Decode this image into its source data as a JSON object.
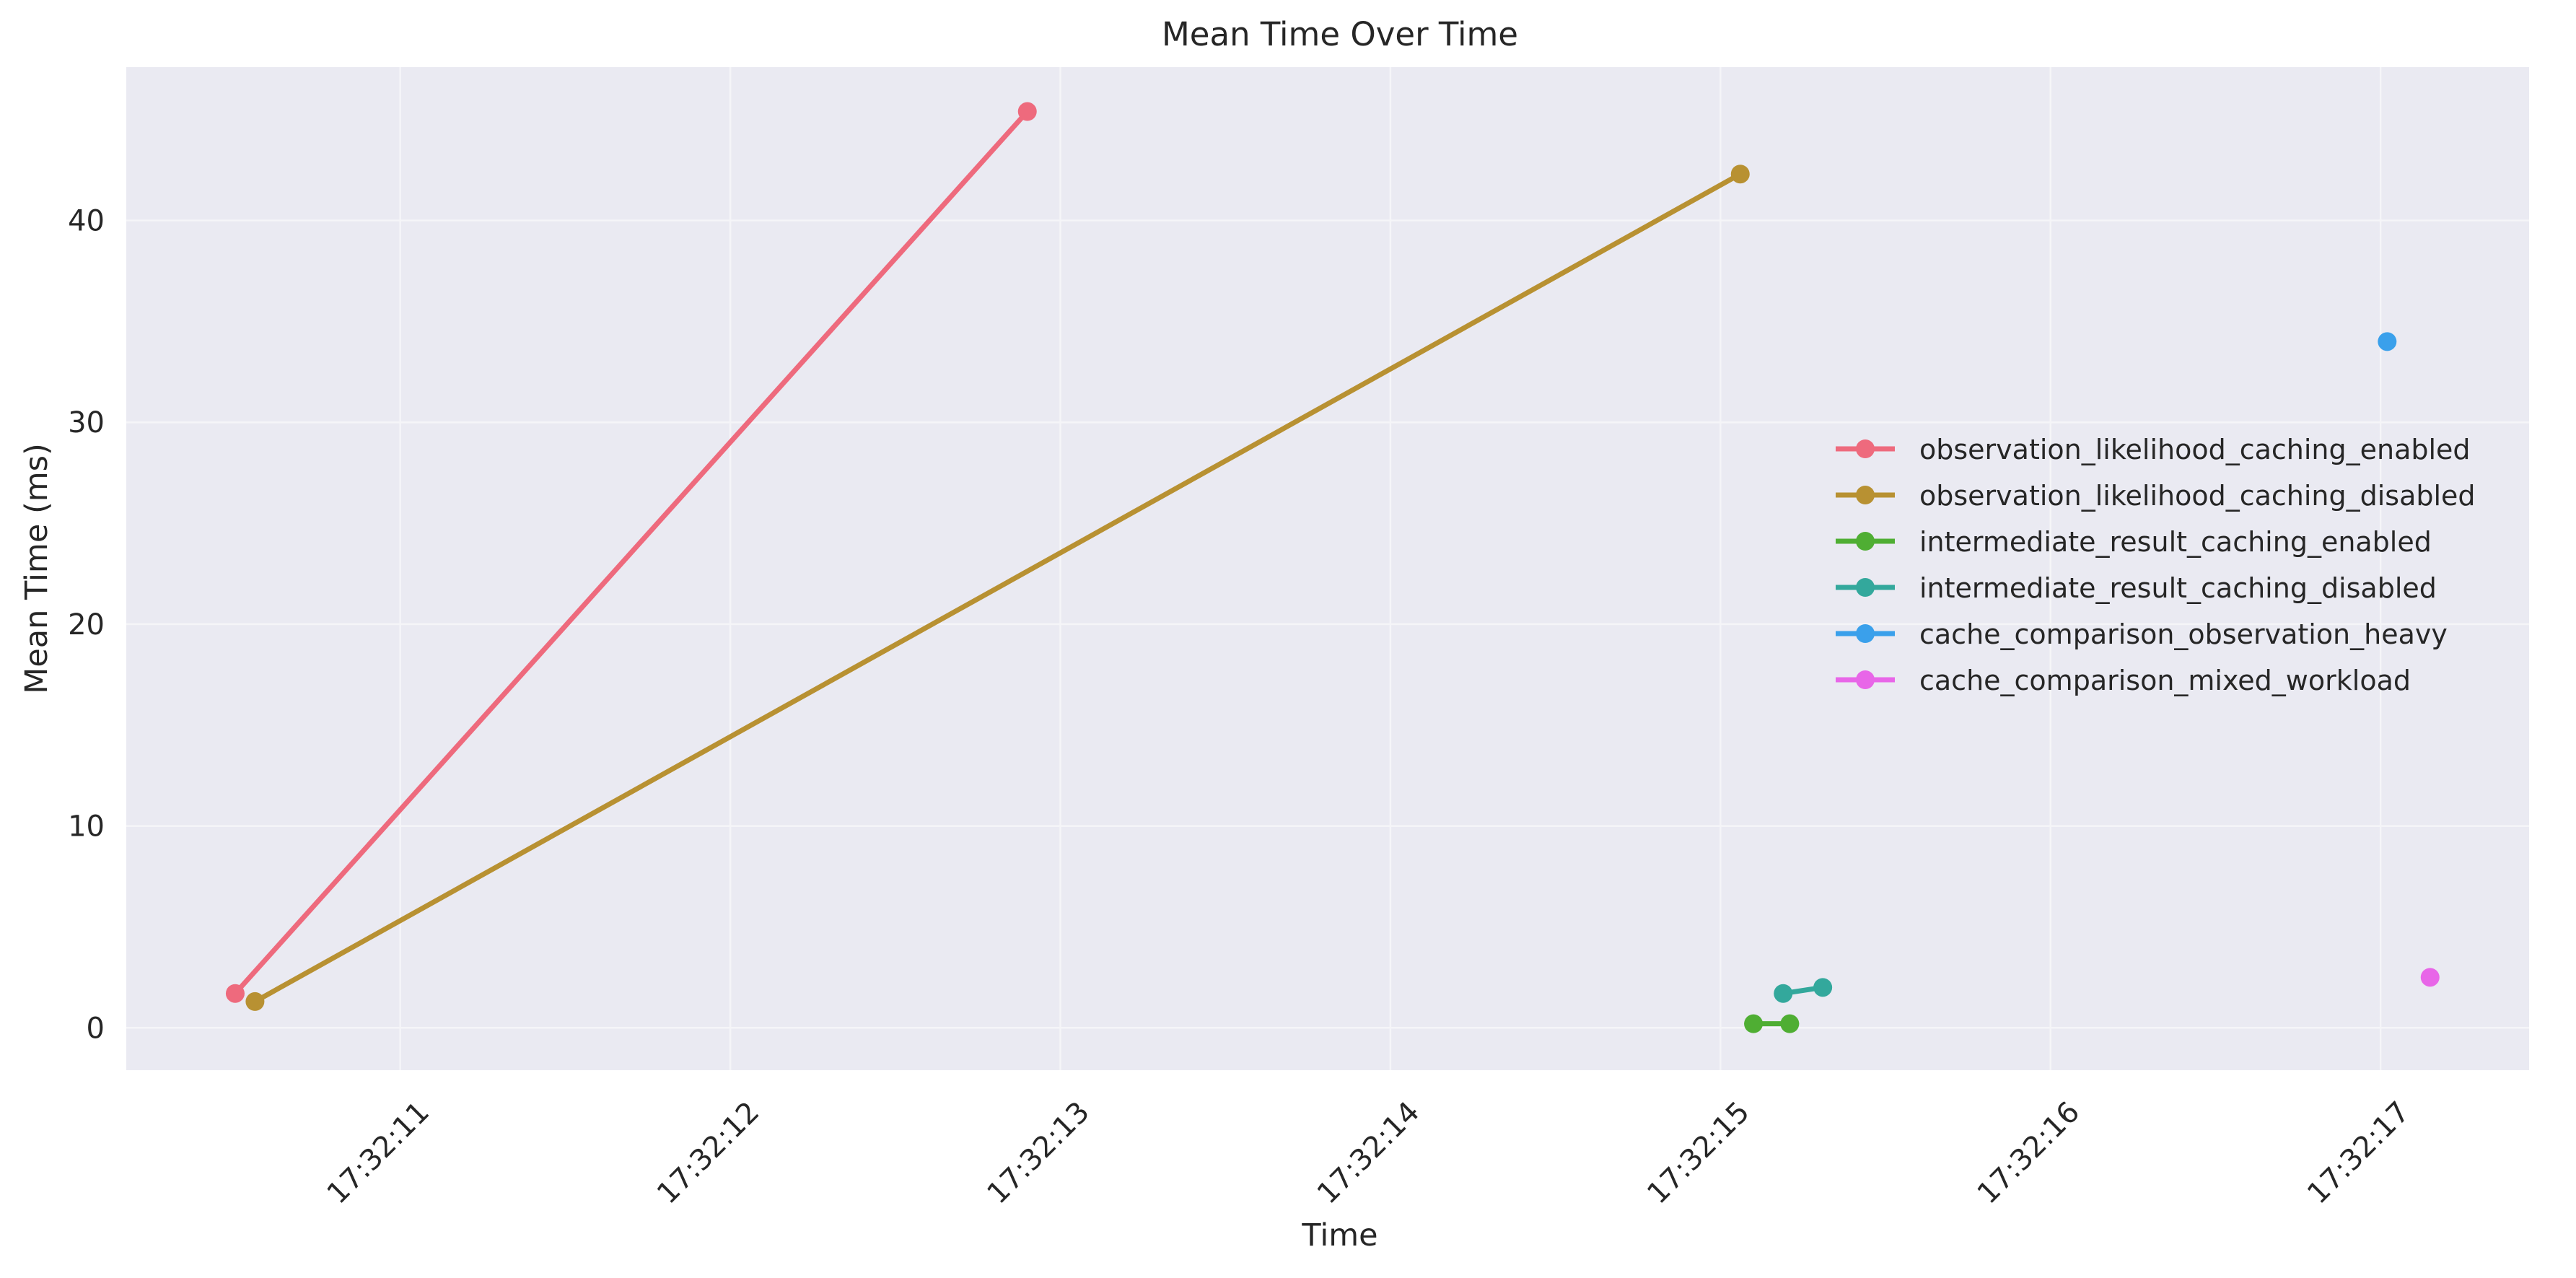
{
  "chart_data": {
    "type": "line",
    "title": "Mean Time Over Time",
    "xlabel": "Time",
    "ylabel": "Mean Time (ms)",
    "x_tick_labels": [
      "17:32:11",
      "17:32:12",
      "17:32:13",
      "17:32:14",
      "17:32:15",
      "17:32:16",
      "17:32:17"
    ],
    "x_ticks_seconds": [
      11,
      12,
      13,
      14,
      15,
      16,
      17
    ],
    "xlim_seconds": [
      10.17,
      17.45
    ],
    "y_ticks": [
      0,
      10,
      20,
      30,
      40
    ],
    "ylim": [
      -2.1,
      47.6
    ],
    "grid": true,
    "legend_position": "center-right",
    "series": [
      {
        "name": "observation_likelihood_caching_enabled",
        "color": "#ee6a7d",
        "points": [
          {
            "x": "17:32:10.50",
            "y": 1.7
          },
          {
            "x": "17:32:12.90",
            "y": 45.4
          }
        ]
      },
      {
        "name": "observation_likelihood_caching_disabled",
        "color": "#b89132",
        "points": [
          {
            "x": "17:32:10.56",
            "y": 1.3
          },
          {
            "x": "17:32:15.06",
            "y": 42.3
          }
        ]
      },
      {
        "name": "intermediate_result_caching_enabled",
        "color": "#4fae33",
        "points": [
          {
            "x": "17:32:15.10",
            "y": 0.2
          },
          {
            "x": "17:32:15.21",
            "y": 0.2
          }
        ]
      },
      {
        "name": "intermediate_result_caching_disabled",
        "color": "#33a89c",
        "points": [
          {
            "x": "17:32:15.19",
            "y": 1.7
          },
          {
            "x": "17:32:15.31",
            "y": 2.0
          }
        ]
      },
      {
        "name": "cache_comparison_observation_heavy",
        "color": "#3aa0eb",
        "points": [
          {
            "x": "17:32:17.02",
            "y": 34.0
          }
        ]
      },
      {
        "name": "cache_comparison_mixed_workload",
        "color": "#e866e8",
        "points": [
          {
            "x": "17:32:17.15",
            "y": 2.5
          }
        ]
      }
    ]
  },
  "colors": {
    "plot_background": "#eaeaf2",
    "grid": "#f5f5f8",
    "text": "#262626"
  }
}
